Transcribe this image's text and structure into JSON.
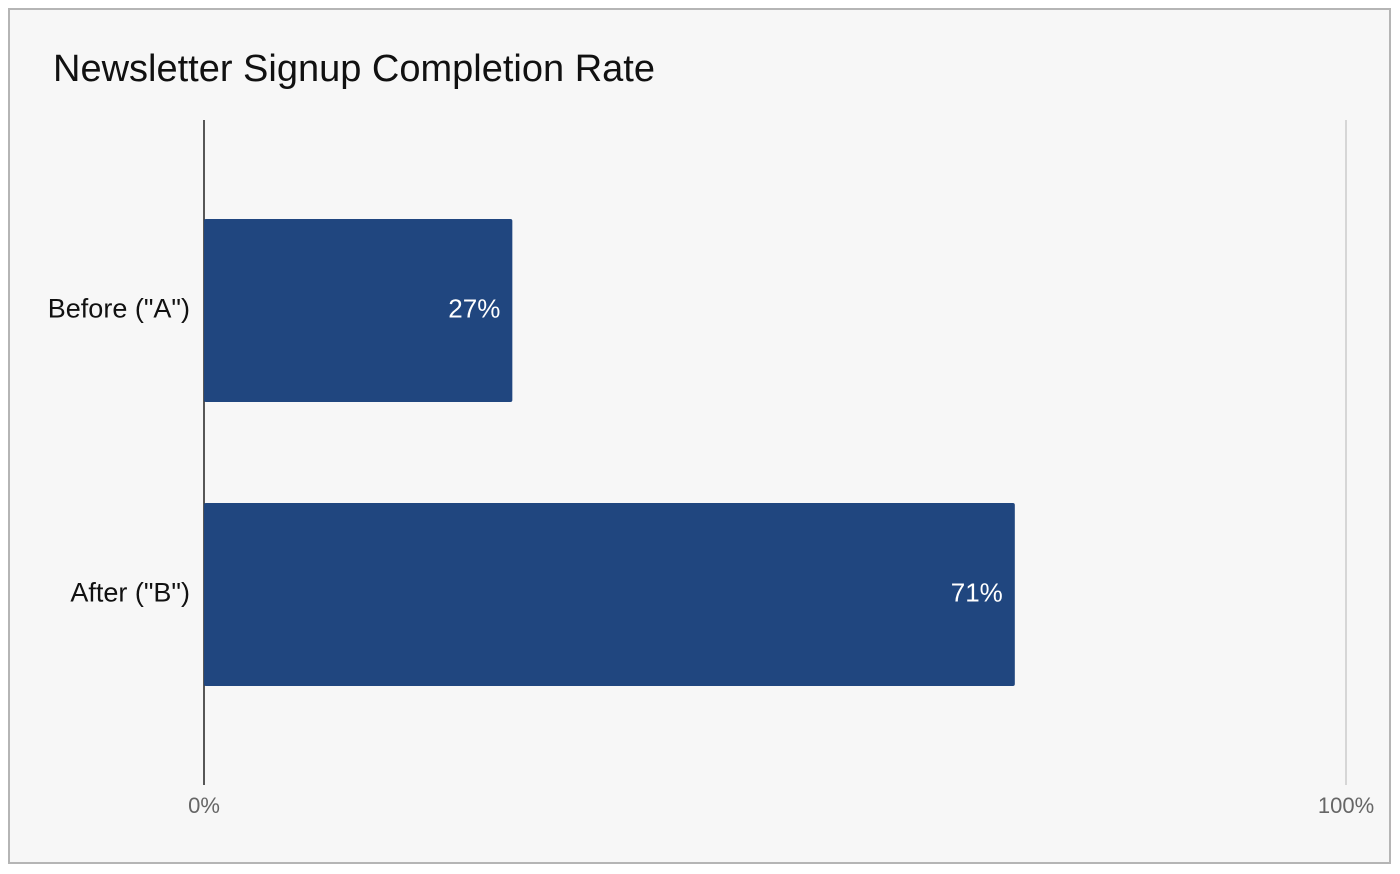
{
  "chart_data": {
    "type": "bar",
    "orientation": "horizontal",
    "title": "Newsletter Signup Completion Rate",
    "categories": [
      "Before (\"A\")",
      "After (\"B\")"
    ],
    "values": [
      27,
      71
    ],
    "value_labels": [
      "27%",
      "71%"
    ],
    "color": "#20467f",
    "xlim": [
      0,
      100
    ],
    "xticks": [
      {
        "value": 0,
        "label": "0%"
      },
      {
        "value": 100,
        "label": "100%"
      }
    ],
    "grid": true
  }
}
